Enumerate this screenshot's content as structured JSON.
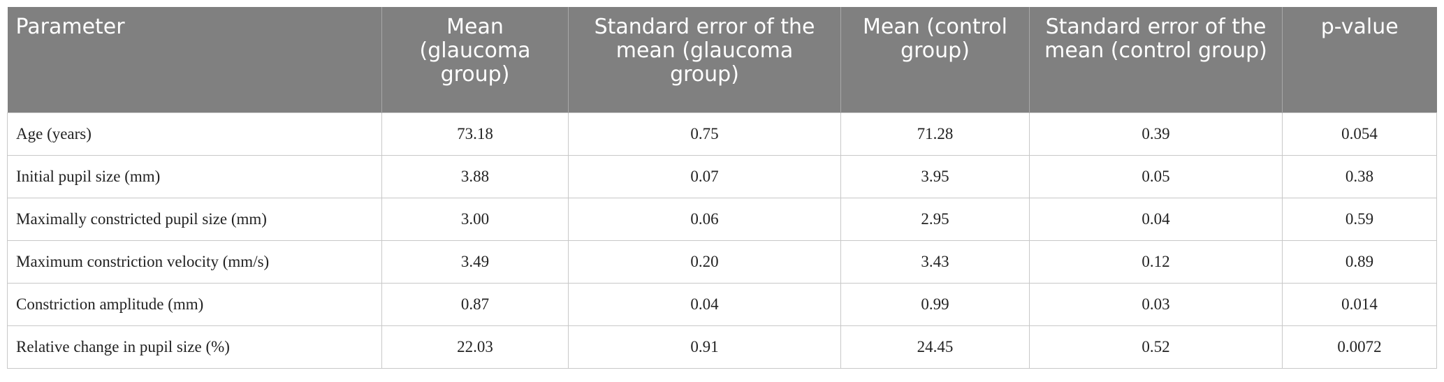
{
  "table": {
    "header": [
      "Parameter",
      "Mean (glaucoma group)",
      "Standard error of the mean (glaucoma group)",
      "Mean (control group)",
      "Standard error of the mean (control group)",
      "p-value"
    ],
    "rows": [
      [
        "Age (years)",
        "73.18",
        "0.75",
        "71.28",
        "0.39",
        "0.054"
      ],
      [
        "Initial pupil size (mm)",
        "3.88",
        "0.07",
        "3.95",
        "0.05",
        "0.38"
      ],
      [
        "Maximally constricted pupil size (mm)",
        "3.00",
        "0.06",
        "2.95",
        "0.04",
        "0.59"
      ],
      [
        "Maximum constriction velocity (mm/s)",
        "3.49",
        "0.20",
        "3.43",
        "0.12",
        "0.89"
      ],
      [
        "Constriction amplitude (mm)",
        "0.87",
        "0.04",
        "0.99",
        "0.03",
        "0.014"
      ],
      [
        "Relative change in pupil size (%)",
        "22.03",
        "0.91",
        "24.45",
        "0.52",
        "0.0072"
      ]
    ]
  }
}
